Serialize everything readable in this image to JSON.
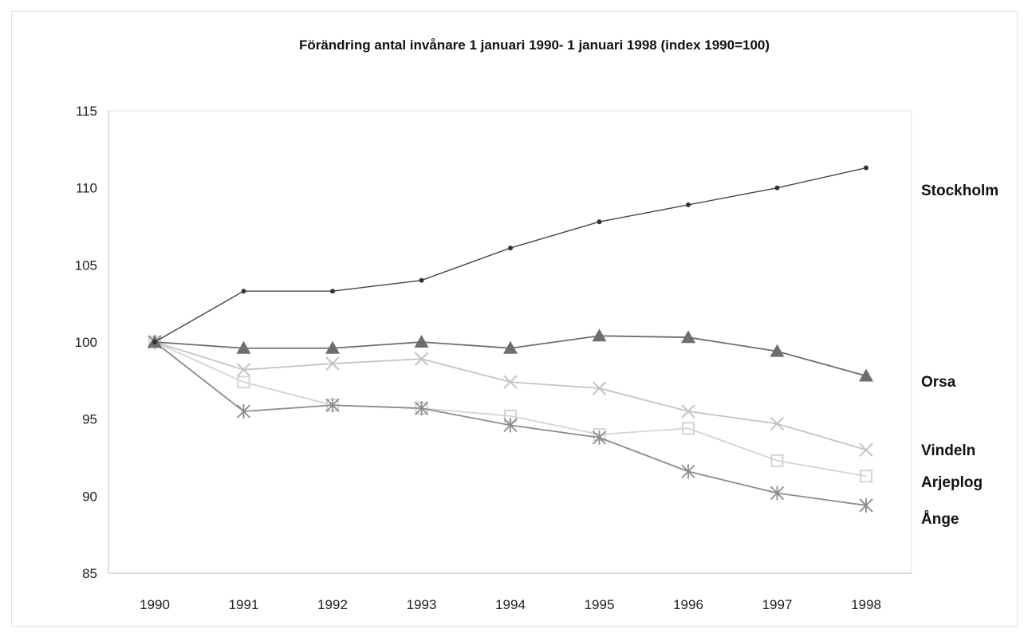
{
  "chart_data": {
    "type": "line",
    "title": "Förändring antal invånare 1 januari 1990- 1 januari 1998 (index 1990=100)",
    "xlabel": "",
    "ylabel": "",
    "categories": [
      "1990",
      "1991",
      "1992",
      "1993",
      "1994",
      "1995",
      "1996",
      "1997",
      "1998"
    ],
    "ylim": [
      85,
      115
    ],
    "yticks": [
      85,
      90,
      95,
      100,
      105,
      110,
      115
    ],
    "grid": false,
    "legend": "end-of-line labels (right)",
    "series": [
      {
        "name": "Stockholm",
        "marker": "dot",
        "color": "#444444",
        "values": [
          100,
          103.3,
          103.3,
          104.0,
          106.1,
          107.8,
          108.9,
          110.0,
          111.3
        ]
      },
      {
        "name": "Orsa",
        "marker": "triangle",
        "color": "#6e6e6e",
        "values": [
          100,
          99.6,
          99.6,
          100.0,
          99.6,
          100.4,
          100.3,
          99.4,
          97.8
        ]
      },
      {
        "name": "Vindeln",
        "marker": "x",
        "color": "#c4c4c4",
        "values": [
          100,
          98.2,
          98.6,
          98.9,
          97.4,
          97.0,
          95.5,
          94.7,
          93.0
        ]
      },
      {
        "name": "Arjeplog",
        "marker": "square",
        "color": "#d4d4d4",
        "values": [
          100,
          97.4,
          95.9,
          95.7,
          95.2,
          94.0,
          94.4,
          92.3,
          91.3
        ]
      },
      {
        "name": "Ånge",
        "marker": "star",
        "color": "#8c8c8c",
        "values": [
          100,
          95.5,
          95.9,
          95.7,
          94.6,
          93.8,
          91.6,
          90.2,
          89.4
        ]
      }
    ]
  }
}
